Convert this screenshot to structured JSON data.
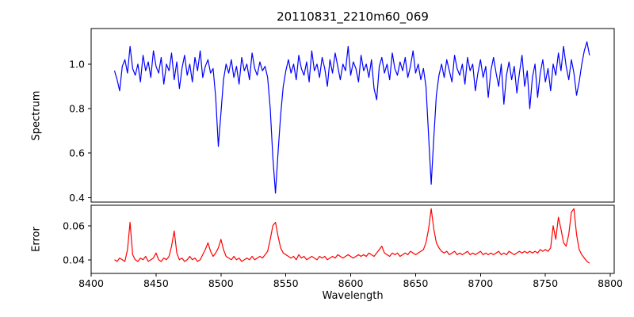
{
  "chart_data": {
    "type": "line",
    "title": "20110831_2210m60_069",
    "xlabel": "Wavelength",
    "axis_color": "#000000",
    "xlim": [
      8400,
      8803
    ],
    "xticks": [
      8400,
      8450,
      8500,
      8550,
      8600,
      8650,
      8700,
      8750,
      8800
    ],
    "legend": "none",
    "grid": false,
    "panels": [
      {
        "name": "spectrum",
        "ylabel": "Spectrum",
        "color": "#0000ff",
        "ylim": [
          0.38,
          1.16
        ],
        "yticks": [
          0.4,
          0.6,
          0.8,
          1.0
        ],
        "ytick_decimals": 1,
        "x_start": 8418,
        "x_step": 2,
        "values": [
          0.97,
          0.93,
          0.88,
          0.99,
          1.02,
          0.96,
          1.08,
          0.98,
          0.95,
          1.0,
          0.92,
          1.04,
          0.97,
          1.01,
          0.94,
          1.06,
          0.99,
          0.96,
          1.03,
          0.91,
          1.0,
          0.97,
          1.05,
          0.93,
          1.01,
          0.89,
          0.98,
          1.04,
          0.95,
          1.0,
          0.92,
          1.03,
          0.97,
          1.06,
          0.94,
          0.99,
          1.02,
          0.96,
          0.98,
          0.85,
          0.63,
          0.78,
          0.93,
          1.0,
          0.96,
          1.02,
          0.94,
          0.99,
          0.91,
          1.03,
          0.97,
          1.0,
          0.93,
          1.05,
          0.98,
          0.95,
          1.01,
          0.97,
          0.99,
          0.94,
          0.8,
          0.58,
          0.42,
          0.6,
          0.77,
          0.9,
          0.97,
          1.02,
          0.96,
          1.0,
          0.93,
          1.04,
          0.98,
          0.95,
          1.01,
          0.92,
          1.06,
          0.97,
          1.0,
          0.94,
          1.03,
          0.98,
          0.9,
          1.02,
          0.96,
          1.05,
          0.99,
          0.93,
          1.0,
          0.97,
          1.08,
          0.95,
          1.01,
          0.98,
          0.92,
          1.04,
          0.97,
          1.0,
          0.94,
          1.02,
          0.89,
          0.84,
          0.99,
          1.03,
          0.96,
          1.0,
          0.93,
          1.05,
          0.98,
          0.95,
          1.01,
          0.97,
          1.03,
          0.94,
          0.99,
          1.06,
          0.96,
          1.0,
          0.93,
          0.98,
          0.9,
          0.68,
          0.46,
          0.67,
          0.86,
          0.95,
          1.0,
          0.94,
          1.02,
          0.97,
          0.92,
          1.04,
          0.98,
          0.95,
          1.0,
          0.91,
          1.03,
          0.97,
          1.0,
          0.88,
          0.96,
          1.02,
          0.94,
          0.99,
          0.85,
          0.97,
          1.03,
          0.96,
          0.9,
          1.0,
          0.82,
          0.95,
          1.01,
          0.93,
          0.99,
          0.87,
          0.96,
          1.04,
          0.9,
          0.97,
          0.8,
          0.94,
          1.0,
          0.85,
          0.96,
          1.02,
          0.92,
          0.98,
          0.88,
          1.0,
          0.95,
          1.05,
          0.97,
          1.08,
          0.99,
          0.93,
          1.02,
          0.96,
          0.86,
          0.92,
          1.0,
          1.06,
          1.1,
          1.04
        ]
      },
      {
        "name": "error",
        "ylabel": "Error",
        "color": "#ff0000",
        "ylim": [
          0.032,
          0.072
        ],
        "yticks": [
          0.04,
          0.06
        ],
        "ytick_decimals": 2,
        "x_start": 8418,
        "x_step": 2,
        "values": [
          0.04,
          0.039,
          0.041,
          0.04,
          0.039,
          0.046,
          0.062,
          0.043,
          0.04,
          0.039,
          0.041,
          0.04,
          0.042,
          0.039,
          0.04,
          0.041,
          0.044,
          0.04,
          0.039,
          0.041,
          0.04,
          0.042,
          0.048,
          0.057,
          0.044,
          0.04,
          0.041,
          0.039,
          0.04,
          0.042,
          0.04,
          0.041,
          0.039,
          0.04,
          0.043,
          0.046,
          0.05,
          0.045,
          0.042,
          0.044,
          0.047,
          0.052,
          0.046,
          0.042,
          0.041,
          0.04,
          0.042,
          0.04,
          0.041,
          0.039,
          0.04,
          0.041,
          0.04,
          0.042,
          0.04,
          0.041,
          0.042,
          0.041,
          0.043,
          0.045,
          0.052,
          0.06,
          0.062,
          0.054,
          0.047,
          0.044,
          0.043,
          0.042,
          0.041,
          0.042,
          0.04,
          0.043,
          0.041,
          0.042,
          0.04,
          0.041,
          0.042,
          0.041,
          0.04,
          0.042,
          0.041,
          0.042,
          0.04,
          0.041,
          0.042,
          0.041,
          0.043,
          0.042,
          0.041,
          0.042,
          0.043,
          0.042,
          0.041,
          0.042,
          0.043,
          0.042,
          0.043,
          0.042,
          0.044,
          0.043,
          0.042,
          0.044,
          0.046,
          0.048,
          0.044,
          0.043,
          0.042,
          0.044,
          0.043,
          0.044,
          0.042,
          0.043,
          0.044,
          0.043,
          0.045,
          0.044,
          0.043,
          0.044,
          0.045,
          0.046,
          0.05,
          0.058,
          0.07,
          0.058,
          0.05,
          0.047,
          0.045,
          0.044,
          0.045,
          0.043,
          0.044,
          0.045,
          0.043,
          0.044,
          0.043,
          0.044,
          0.045,
          0.043,
          0.044,
          0.043,
          0.044,
          0.045,
          0.043,
          0.044,
          0.043,
          0.044,
          0.043,
          0.044,
          0.045,
          0.043,
          0.044,
          0.043,
          0.045,
          0.044,
          0.043,
          0.044,
          0.045,
          0.044,
          0.045,
          0.044,
          0.045,
          0.044,
          0.045,
          0.044,
          0.046,
          0.045,
          0.046,
          0.045,
          0.047,
          0.06,
          0.052,
          0.065,
          0.058,
          0.05,
          0.048,
          0.055,
          0.068,
          0.07,
          0.055,
          0.046,
          0.043,
          0.041,
          0.039,
          0.038
        ]
      }
    ]
  }
}
